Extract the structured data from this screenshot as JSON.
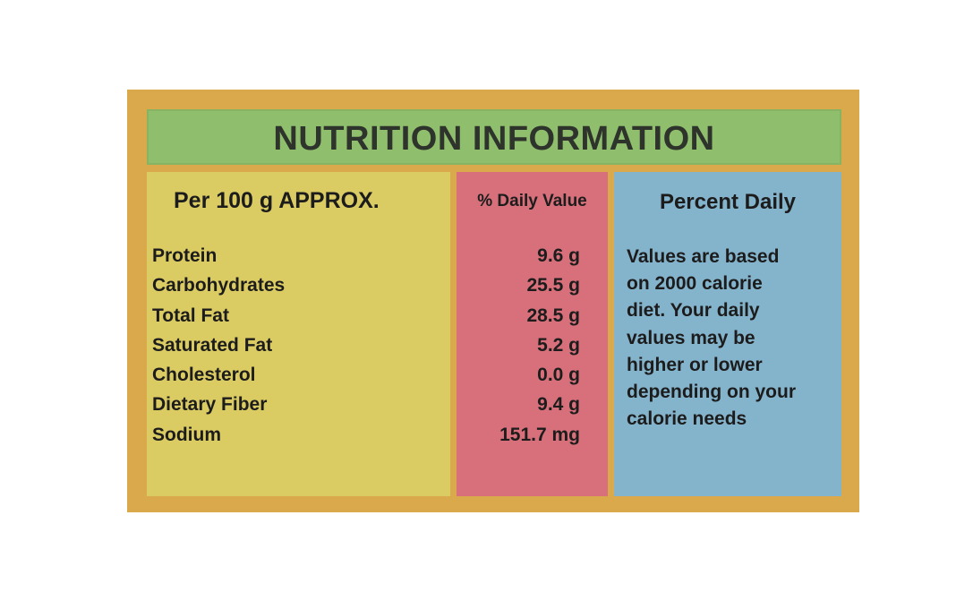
{
  "label": {
    "title": "NUTRITION INFORMATION",
    "nutrients_header": "Per 100 g APPROX.",
    "values_header": "% Daily Value",
    "note_header": "Percent Daily",
    "rows": [
      {
        "name": "Protein",
        "value": "9.6 g"
      },
      {
        "name": "Carbohydrates",
        "value": "25.5 g"
      },
      {
        "name": "Total Fat",
        "value": "28.5 g"
      },
      {
        "name": "Saturated Fat",
        "value": "5.2 g"
      },
      {
        "name": "Cholesterol",
        "value": "0.0 g"
      },
      {
        "name": "Dietary Fiber",
        "value": "9.4 g"
      },
      {
        "name": "Sodium",
        "value": "151.7 mg"
      }
    ],
    "note_lines": [
      "Values are based",
      "on 2000 calorie",
      "diet. Your daily",
      "values may be",
      "higher or lower",
      "depending on your",
      "calorie needs"
    ]
  },
  "colors": {
    "outer": "#d9a94b",
    "title_band": "#8fbf6c",
    "nutrients_column": "#dacb63",
    "values_column": "#d7707a",
    "note_column": "#84b3cc"
  }
}
